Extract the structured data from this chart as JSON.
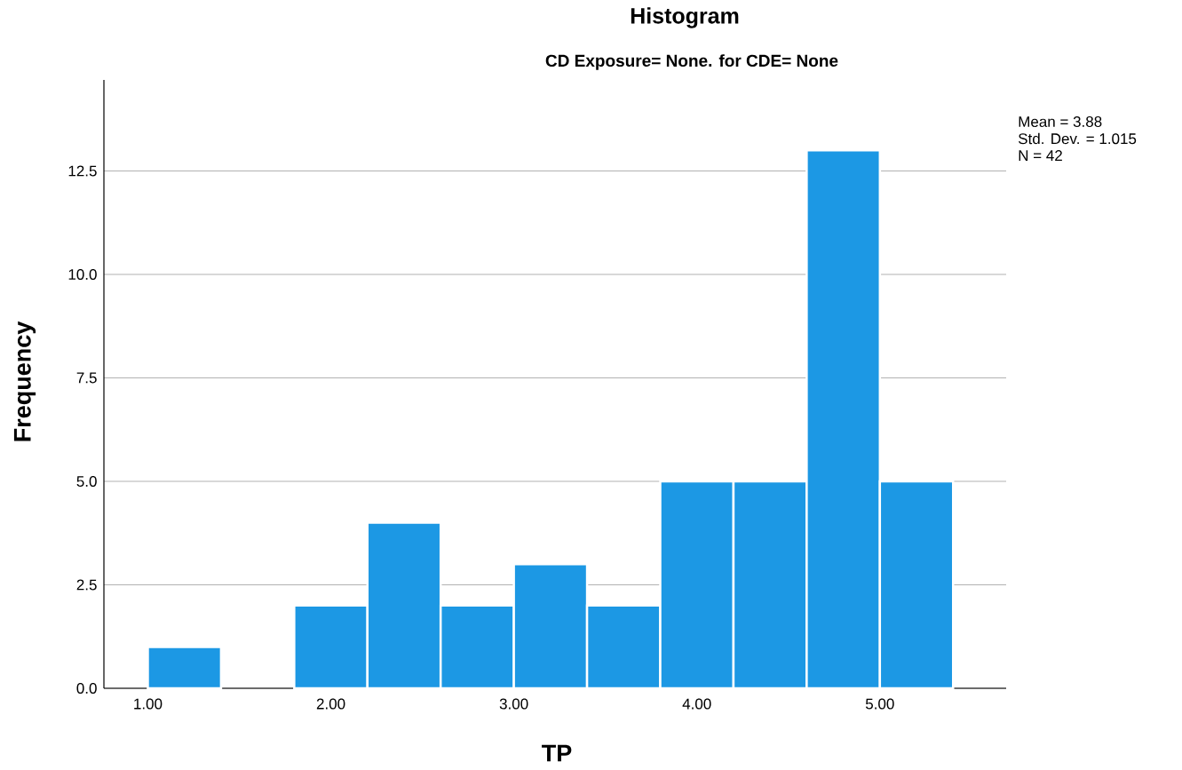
{
  "chart_data": {
    "type": "histogram",
    "title": "Histogram",
    "subtitle": "CD Exposure= None.  for CDE= None",
    "xlabel": "TP",
    "ylabel": "Frequency",
    "bins": [
      1.0,
      1.4,
      1.8,
      2.2,
      2.6,
      3.0,
      3.4,
      3.8,
      4.2,
      4.6,
      5.0,
      5.4
    ],
    "values": [
      1,
      0,
      2,
      4,
      2,
      3,
      2,
      5,
      5,
      13,
      5
    ],
    "color": "#1c98e4",
    "xlim": [
      0.76,
      5.69
    ],
    "ylim": [
      0,
      14.7
    ],
    "xticks": [
      {
        "value": 1,
        "label": "1.00"
      },
      {
        "value": 2,
        "label": "2.00"
      },
      {
        "value": 3,
        "label": "3.00"
      },
      {
        "value": 4,
        "label": "4.00"
      },
      {
        "value": 5,
        "label": "5.00"
      }
    ],
    "yticks": [
      {
        "value": 0,
        "label": "0.0"
      },
      {
        "value": 2.5,
        "label": "2.5"
      },
      {
        "value": 5,
        "label": "5.0"
      },
      {
        "value": 7.5,
        "label": "7.5"
      },
      {
        "value": 10,
        "label": "10.0"
      },
      {
        "value": 12.5,
        "label": "12.5"
      }
    ],
    "grid": "y",
    "annotations": [
      "Mean = 3.88",
      "Std. Dev. = 1.015",
      "N = 42"
    ]
  }
}
